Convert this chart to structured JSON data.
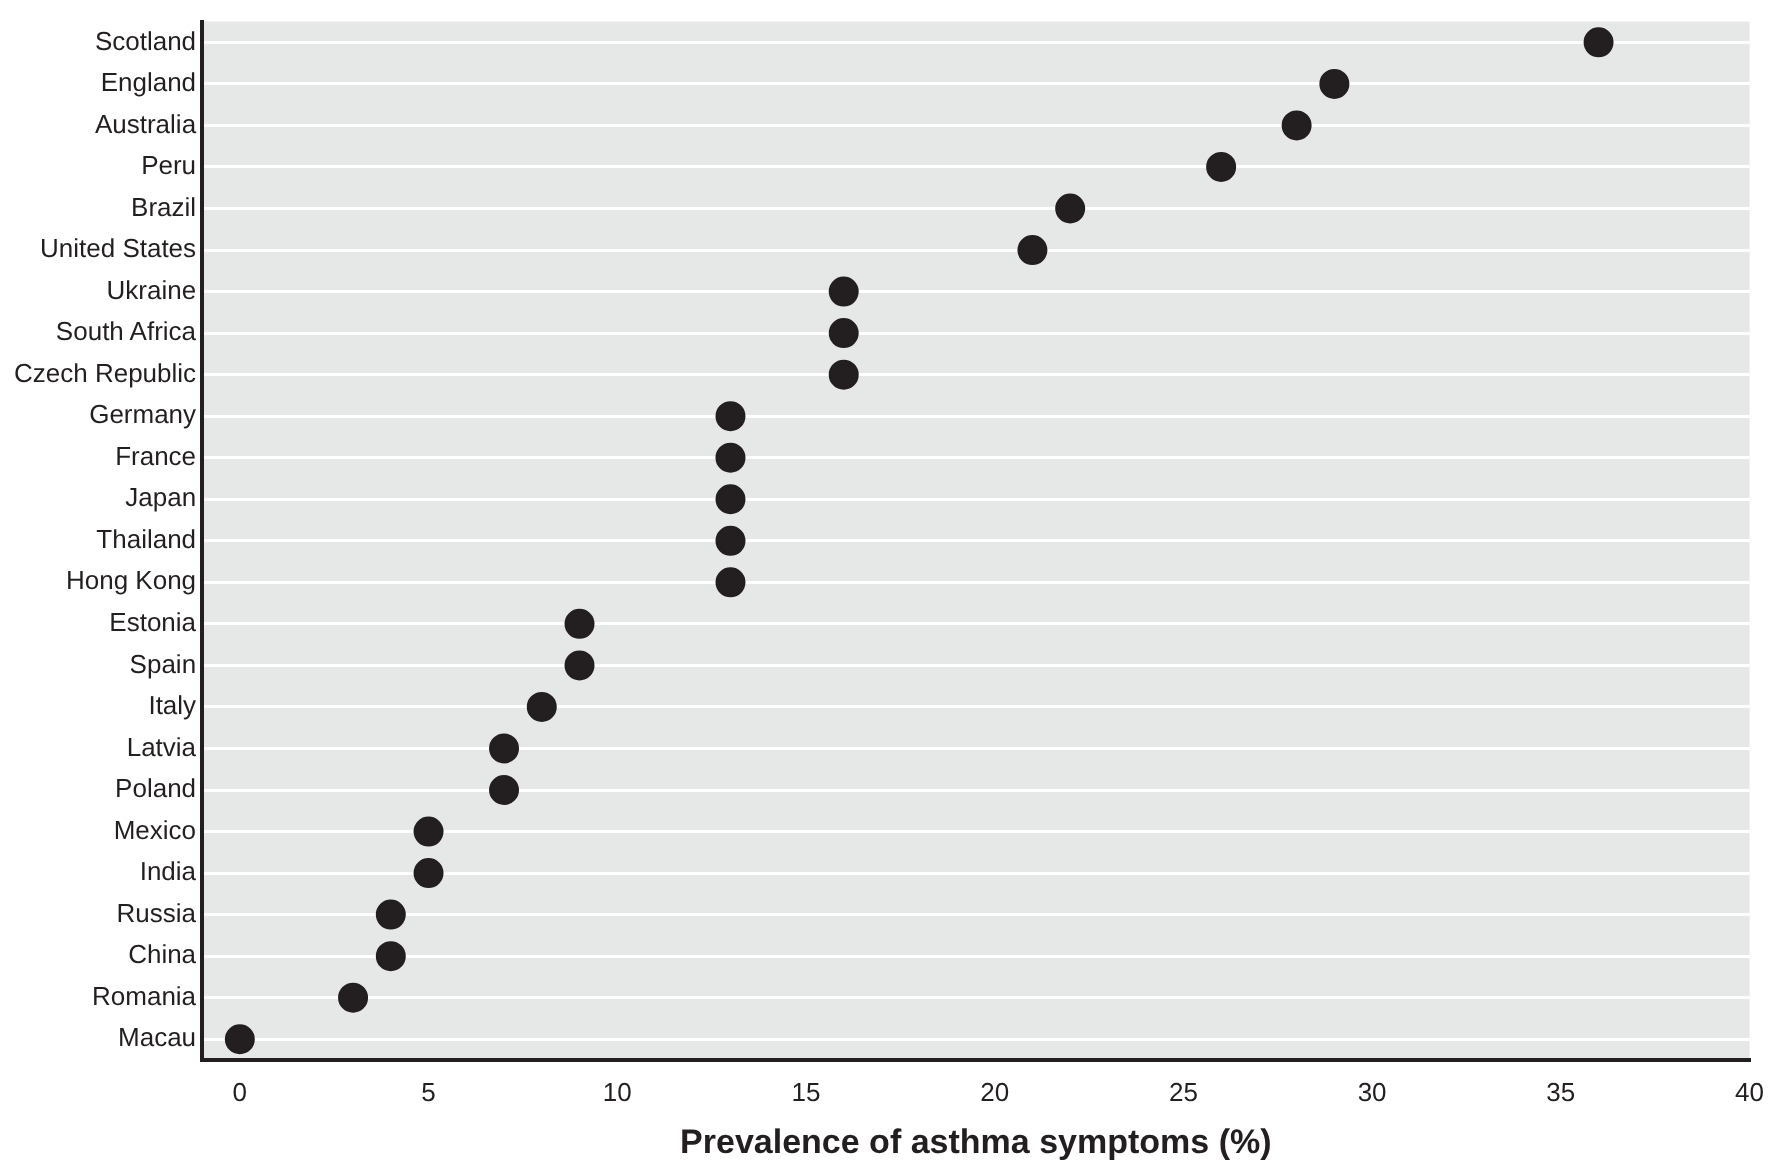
{
  "chart_data": {
    "type": "scatter",
    "orientation": "horizontal",
    "xlabel": "Prevalence of asthma symptoms (%)",
    "categories": [
      "Scotland",
      "England",
      "Australia",
      "Peru",
      "Brazil",
      "United States",
      "Ukraine",
      "South Africa",
      "Czech Republic",
      "Germany",
      "France",
      "Japan",
      "Thailand",
      "Hong Kong",
      "Estonia",
      "Spain",
      "Italy",
      "Latvia",
      "Poland",
      "Mexico",
      "India",
      "Russia",
      "China",
      "Romania",
      "Macau"
    ],
    "values": [
      36,
      29,
      28,
      26,
      22,
      21,
      16,
      16,
      16,
      13,
      13,
      13,
      13,
      13,
      9,
      9,
      8,
      7,
      7,
      5,
      5,
      4,
      4,
      3,
      0
    ],
    "color": "#231f20",
    "marker": "circle",
    "xlim": [
      -1,
      40
    ],
    "xticks": [
      0,
      5,
      10,
      15,
      20,
      25,
      30,
      35,
      40
    ],
    "grid": "y",
    "legend": false
  }
}
